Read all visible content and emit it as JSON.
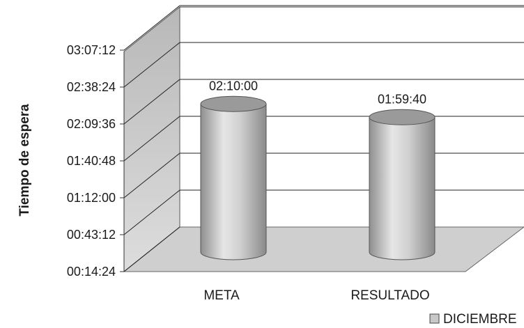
{
  "chart_data": {
    "type": "bar",
    "style": "3d-cylinder",
    "title": "",
    "xlabel": "",
    "ylabel": "Tiempo de espera",
    "categories": [
      "META",
      "RESULTADO"
    ],
    "series": [
      {
        "name": "DICIEMBRE",
        "values": [
          "02:10:00",
          "01:59:40"
        ]
      }
    ],
    "data_labels": [
      "02:10:00",
      "01:59:40"
    ],
    "yticks": [
      "00:14:24",
      "00:43:12",
      "01:12:00",
      "01:40:48",
      "02:09:36",
      "02:38:24",
      "03:07:12"
    ],
    "ylim": [
      "00:14:24",
      "03:07:12"
    ],
    "grid": true,
    "legend_position": "bottom-right",
    "colors": {
      "bar": "#c8c8c8",
      "bar_top": "#9a9a9a",
      "wall": "#d2d2d2",
      "floor": "#cfcfcf",
      "grid": "#222222"
    }
  }
}
